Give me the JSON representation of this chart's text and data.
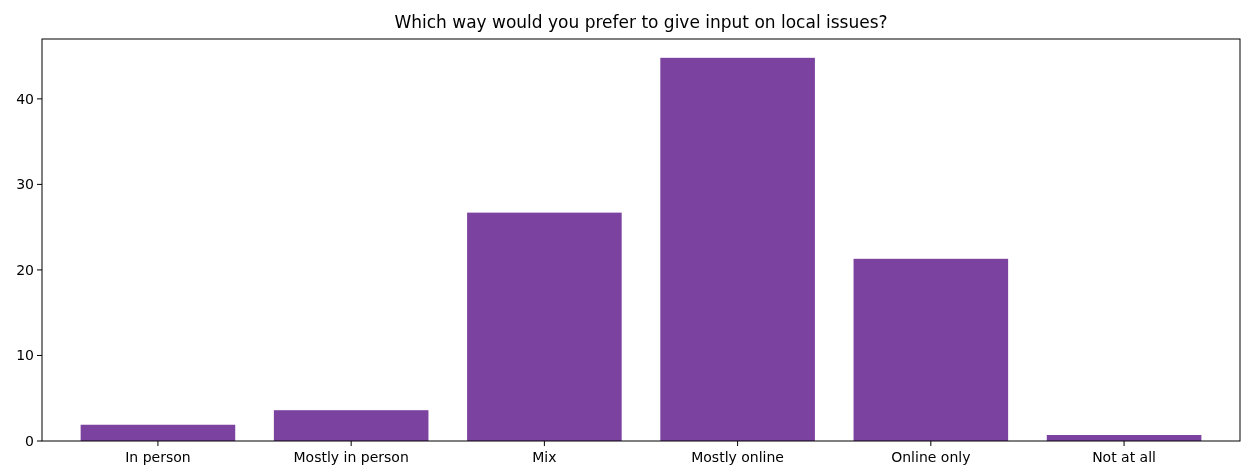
{
  "chart_data": {
    "type": "bar",
    "title": "Which way would you prefer to give input on local issues?",
    "categories": [
      "In person",
      "Mostly in person",
      "Mix",
      "Mostly online",
      "Online only",
      "Not at all"
    ],
    "values": [
      1.9,
      3.6,
      26.7,
      44.8,
      21.3,
      0.7
    ],
    "color": "#7b42a0",
    "ylim": [
      0,
      47
    ],
    "yticks": [
      0,
      10,
      20,
      30,
      40
    ],
    "grid": false
  }
}
